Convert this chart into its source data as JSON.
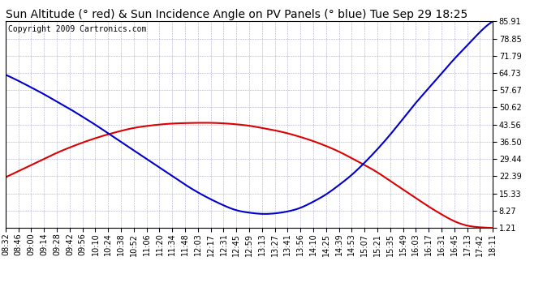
{
  "title": "Sun Altitude (° red) & Sun Incidence Angle on PV Panels (° blue) Tue Sep 29 18:25",
  "copyright": "Copyright 2009 Cartronics.com",
  "bg_color": "#ffffff",
  "plot_bg_color": "#ffffff",
  "grid_color": "#aaaacc",
  "x_labels": [
    "08:32",
    "08:46",
    "09:00",
    "09:14",
    "09:28",
    "09:42",
    "09:56",
    "10:10",
    "10:24",
    "10:38",
    "10:52",
    "11:06",
    "11:20",
    "11:34",
    "11:48",
    "12:03",
    "12:17",
    "12:31",
    "12:45",
    "12:59",
    "13:13",
    "13:27",
    "13:41",
    "13:56",
    "14:10",
    "14:25",
    "14:39",
    "14:53",
    "15:07",
    "15:21",
    "15:35",
    "15:49",
    "16:03",
    "16:17",
    "16:31",
    "16:45",
    "17:13",
    "17:42",
    "18:11"
  ],
  "y_ticks": [
    1.21,
    8.27,
    15.33,
    22.39,
    29.44,
    36.5,
    43.56,
    50.62,
    57.67,
    64.73,
    71.79,
    78.85,
    85.91
  ],
  "y_min": 1.21,
  "y_max": 85.91,
  "red_data": [
    22.0,
    24.5,
    27.0,
    29.5,
    32.0,
    34.2,
    36.2,
    38.0,
    39.6,
    41.0,
    42.2,
    43.0,
    43.6,
    44.0,
    44.2,
    44.3,
    44.3,
    44.1,
    43.7,
    43.1,
    42.2,
    41.2,
    40.0,
    38.5,
    36.8,
    34.8,
    32.5,
    29.8,
    27.0,
    24.0,
    20.5,
    17.0,
    13.5,
    10.0,
    6.8,
    4.0,
    2.2,
    1.5,
    1.21
  ],
  "blue_data": [
    64.0,
    61.5,
    58.8,
    56.0,
    53.0,
    50.0,
    46.8,
    43.5,
    40.0,
    36.5,
    33.0,
    29.5,
    26.0,
    22.5,
    19.0,
    15.8,
    13.0,
    10.5,
    8.5,
    7.5,
    7.0,
    7.2,
    8.0,
    9.5,
    12.0,
    15.0,
    18.8,
    23.0,
    28.0,
    33.5,
    39.5,
    46.0,
    52.5,
    58.5,
    64.5,
    70.5,
    76.0,
    81.5,
    85.91
  ],
  "red_color": "#dd0000",
  "blue_color": "#0000cc",
  "title_fontsize": 10,
  "tick_fontsize": 7,
  "copyright_fontsize": 7
}
